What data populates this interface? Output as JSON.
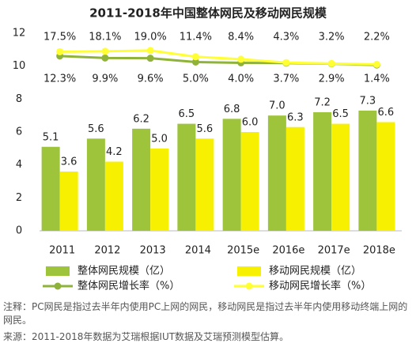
{
  "chart_data": {
    "type": "bar",
    "title": "2011-2018年中国整体网民及移动网民规模",
    "categories": [
      "2011",
      "2012",
      "2013",
      "2014",
      "2015e",
      "2016e",
      "2017e",
      "2018e"
    ],
    "series": [
      {
        "name": "整体网民规模（亿）",
        "type": "bar",
        "color": "#9dc43a",
        "values": [
          5.1,
          5.6,
          6.2,
          6.5,
          6.8,
          7.0,
          7.2,
          7.3
        ],
        "value_labels": [
          "5.1",
          "5.6",
          "6.2",
          "6.5",
          "6.8",
          "7.0",
          "7.2",
          "7.3"
        ]
      },
      {
        "name": "移动网民规模（亿）",
        "type": "bar",
        "color": "#f7f000",
        "values": [
          3.6,
          4.2,
          5.0,
          5.6,
          6.0,
          6.3,
          6.5,
          6.6
        ],
        "value_labels": [
          "3.6",
          "4.2",
          "5.0",
          "5.6",
          "6.0",
          "6.3",
          "6.5",
          "6.6"
        ]
      },
      {
        "name": "整体网民增长率（%）",
        "type": "line",
        "axis": "y2",
        "color": "#8fb33a",
        "values": [
          12.3,
          9.9,
          9.6,
          5.0,
          4.0,
          3.7,
          2.9,
          1.4
        ],
        "value_labels": [
          "12.3%",
          "9.9%",
          "9.6%",
          "5.0%",
          "4.0%",
          "3.7%",
          "2.9%",
          "1.4%"
        ]
      },
      {
        "name": "移动网民增长率（%）",
        "type": "line",
        "axis": "y2",
        "color": "#ffff33",
        "values": [
          17.5,
          18.1,
          19.0,
          11.4,
          8.4,
          4.3,
          3.2,
          2.2
        ],
        "value_labels": [
          "17.5%",
          "18.1%",
          "19.0%",
          "11.4%",
          "8.4%",
          "4.3%",
          "3.2%",
          "2.2%"
        ]
      }
    ],
    "ylim": [
      0,
      12
    ],
    "yticks": [
      0,
      2,
      4,
      6,
      8,
      10,
      12
    ],
    "y2lim": [
      -200,
      40
    ],
    "grid": false,
    "note": "注释：PC网民是指过去半年内使用PC上网的网民，移动网民是指过去半年内使用移动终端上网的网民。",
    "source": "来源：2011-2018年数据为艾瑞根据IUT数据及艾瑞预测模型估算。"
  }
}
